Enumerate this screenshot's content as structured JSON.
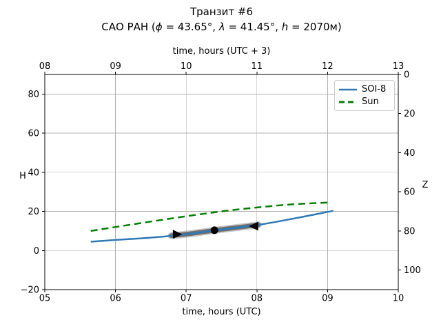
{
  "chart_data": {
    "type": "line",
    "title": "Транзит #6",
    "subtitle": "САО РАН (ϕ = 43.65°, λ = 41.45°, h = 2070м)",
    "subtitle_parts": [
      {
        "text": "САО РАН (",
        "italic": false
      },
      {
        "text": "ϕ",
        "italic": true
      },
      {
        "text": " = 43.65°, ",
        "italic": false
      },
      {
        "text": "λ",
        "italic": true
      },
      {
        "text": " = 41.45°, ",
        "italic": false
      },
      {
        "text": "h",
        "italic": true
      },
      {
        "text": " = 2070м)",
        "italic": false
      }
    ],
    "axes": {
      "x_bottom": {
        "label": "time, hours (UTC)",
        "lim": [
          5,
          10
        ],
        "tick_values": [
          5,
          6,
          7,
          8,
          9,
          10
        ],
        "tick_labels": [
          "05",
          "06",
          "07",
          "08",
          "09",
          "10"
        ]
      },
      "x_top": {
        "label": "time, hours (UTC + 3)",
        "tick_labels": [
          "08",
          "09",
          "10",
          "11",
          "12",
          "13"
        ]
      },
      "y_left": {
        "label": "H",
        "lim": [
          -20,
          90
        ],
        "tick_values": [
          -20,
          0,
          20,
          40,
          60,
          80
        ],
        "tick_labels": [
          "−20",
          "0",
          "20",
          "40",
          "60",
          "80"
        ]
      },
      "y_right": {
        "label": "Z",
        "lim": [
          0,
          110
        ],
        "tick_values": [
          0,
          20,
          40,
          60,
          80,
          100
        ],
        "tick_labels": [
          "0",
          "20",
          "40",
          "60",
          "80",
          "100"
        ]
      }
    },
    "grid": {
      "show": true,
      "color": "#b0b0b0"
    },
    "legend": {
      "position": "upper right"
    },
    "series": [
      {
        "name": "SOI-8",
        "color": "#2e79b5",
        "line_style": "solid",
        "line_width": 2.5,
        "x": [
          5.65,
          6.0,
          6.5,
          7.0,
          7.4,
          8.0,
          8.5,
          9.08
        ],
        "y": [
          4.5,
          5.4,
          6.6,
          8.3,
          10.3,
          13.0,
          16.2,
          20.3
        ]
      },
      {
        "name": "Sun",
        "color": "#008000",
        "line_style": "dashed",
        "line_width": 2.5,
        "x": [
          5.65,
          6.0,
          6.5,
          7.0,
          7.5,
          8.0,
          8.5,
          9.05
        ],
        "y": [
          10.0,
          12.0,
          14.8,
          17.5,
          20.0,
          22.0,
          23.6,
          24.6
        ]
      }
    ],
    "transit_band": {
      "on_series": "SOI-8",
      "x_start": 6.79,
      "x_end": 8.02,
      "color": "#808080"
    },
    "markers": [
      {
        "shape": "triangle-right",
        "x": 6.87,
        "y": 8.3,
        "color": "#000000"
      },
      {
        "shape": "circle",
        "x": 7.4,
        "y": 10.35,
        "color": "#000000"
      },
      {
        "shape": "triangle-left",
        "x": 7.96,
        "y": 12.45,
        "color": "#000000"
      }
    ]
  }
}
